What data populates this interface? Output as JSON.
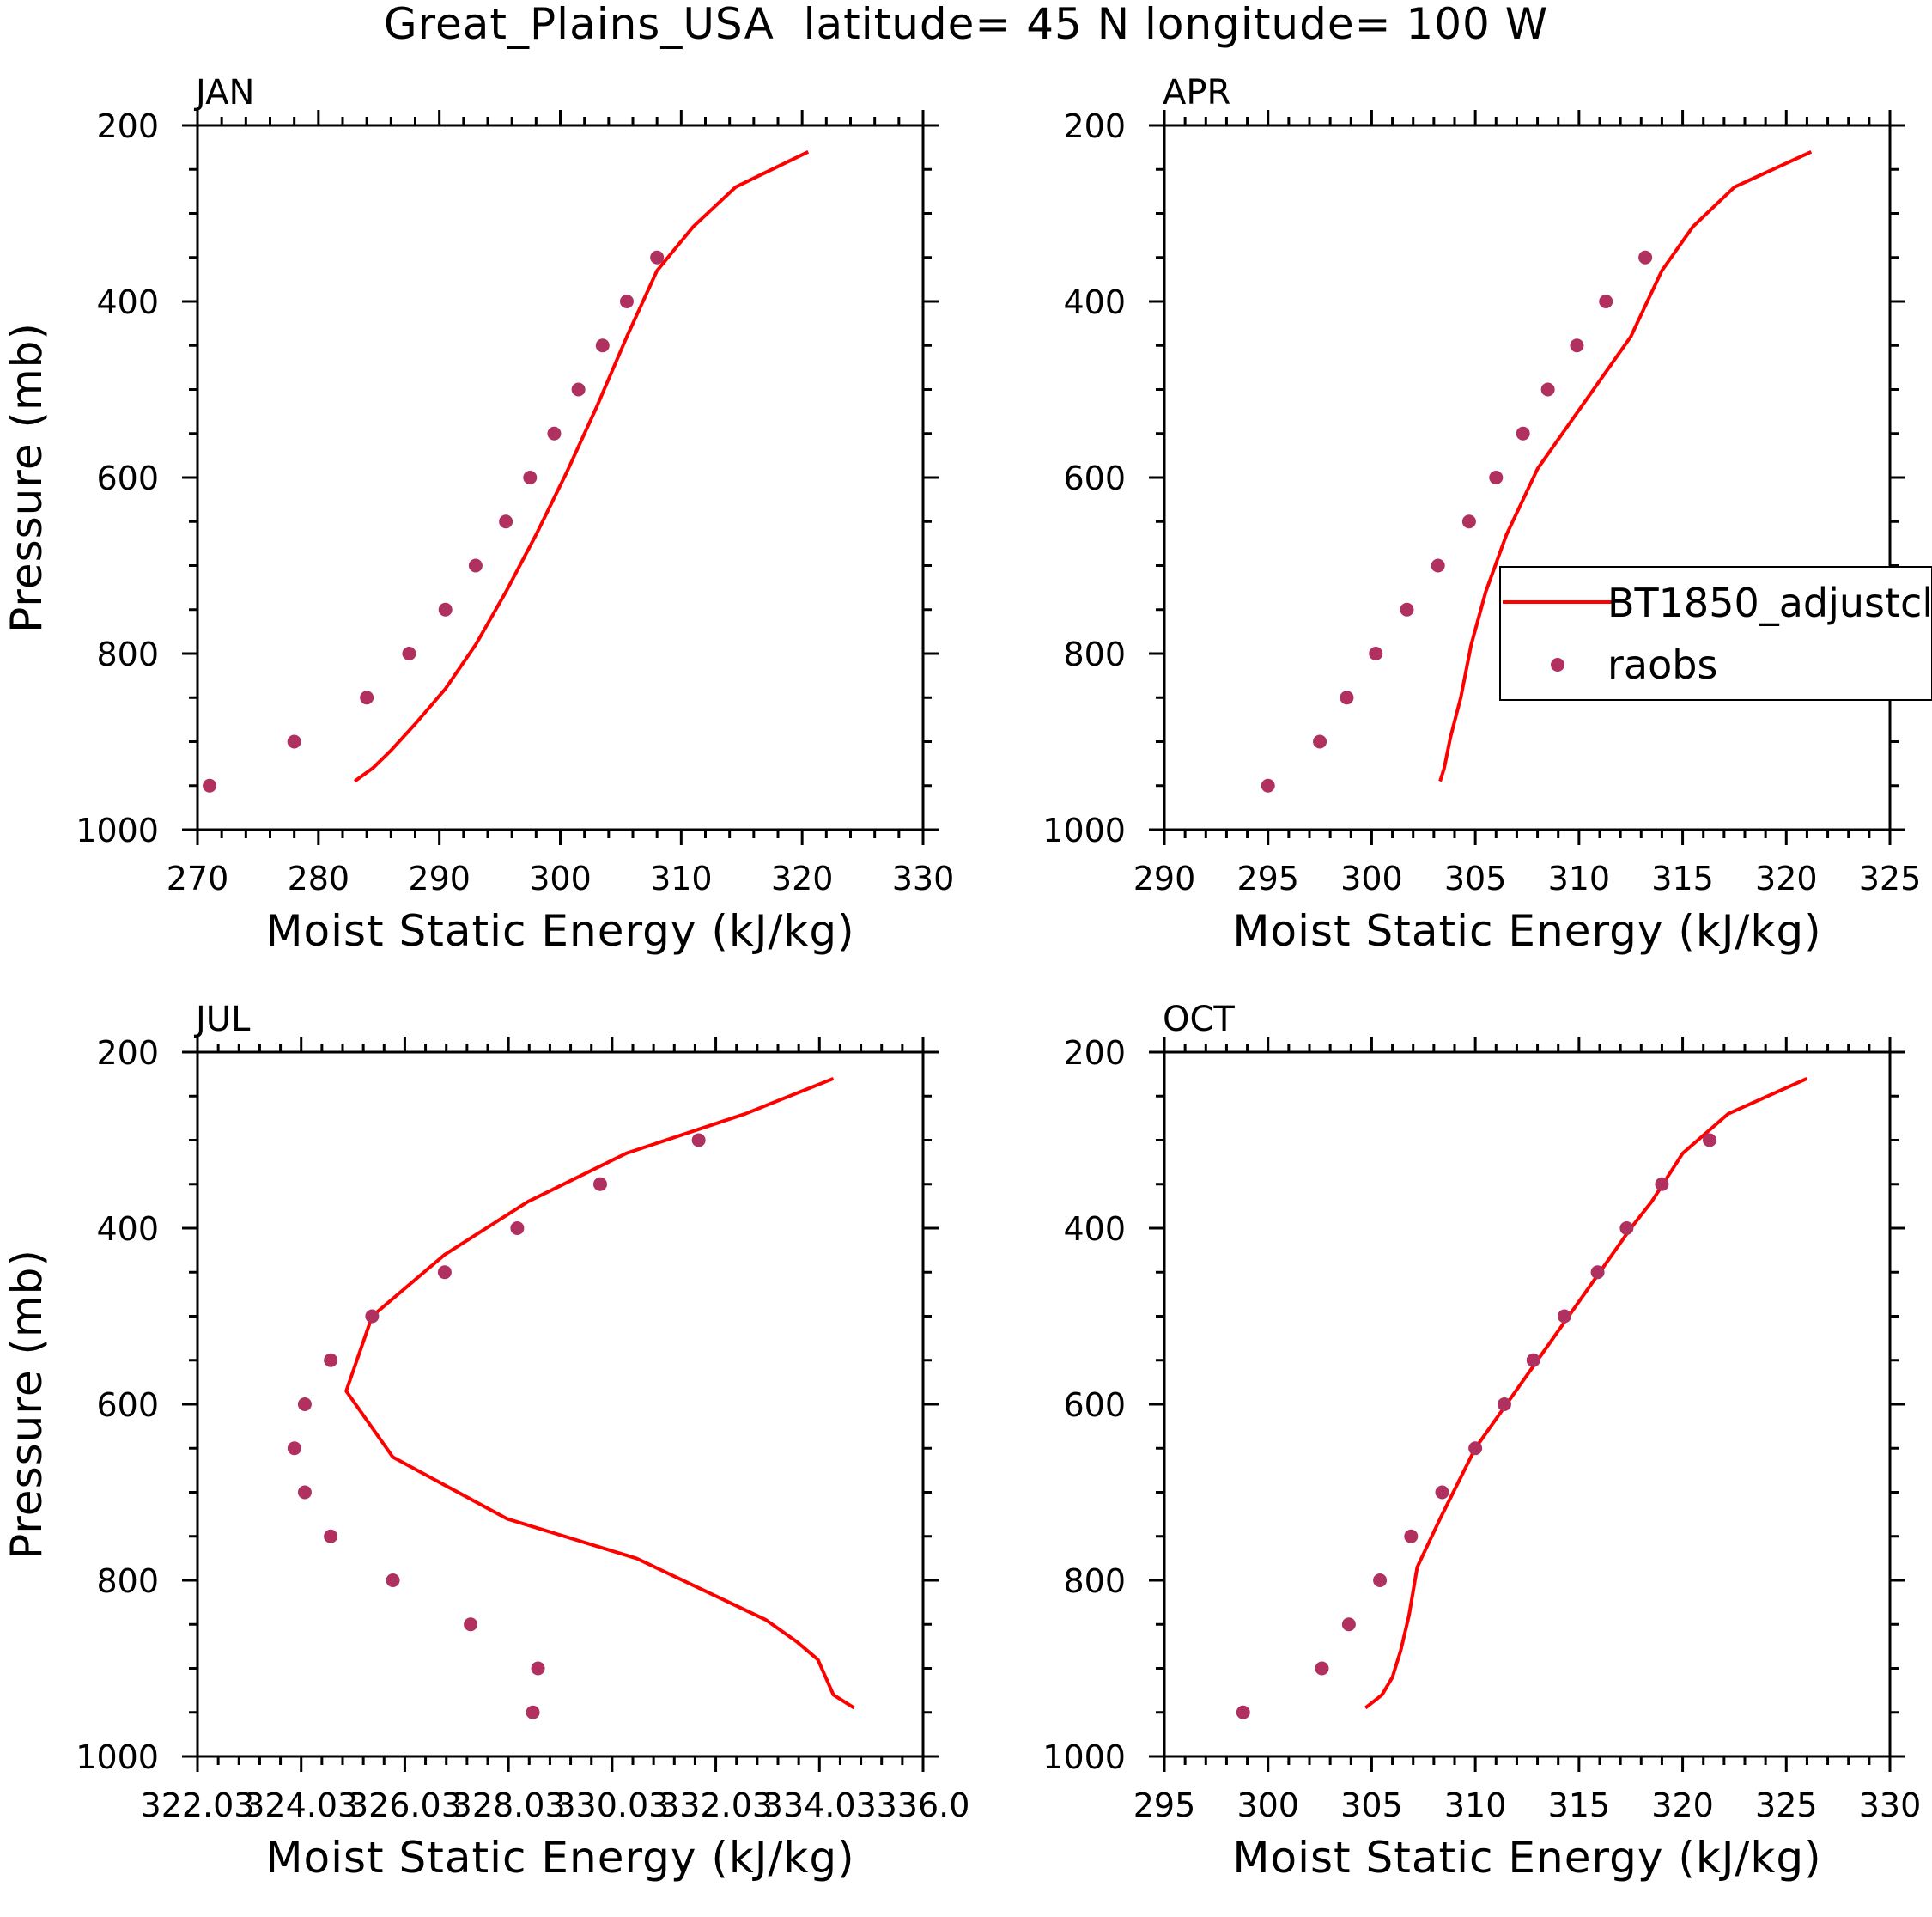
{
  "figure": {
    "title": "Great_Plains_USA  latitude= 45 N longitude= 100 W"
  },
  "legend": {
    "model_label": "BT1850_adjustcl",
    "obs_label": "raobs"
  },
  "colors": {
    "model_line": "#ff0000",
    "obs_marker": "#b03060",
    "axis": "#000000"
  },
  "chart_data": [
    {
      "type": "line",
      "label": "JAN",
      "xlabel": "Moist Static Energy (kJ/kg)",
      "ylabel": "Pressure (mb)",
      "xlim": [
        270,
        330
      ],
      "ylim": [
        1000,
        200
      ],
      "xticks": [
        270,
        280,
        290,
        300,
        310,
        320,
        330
      ],
      "xtick_labels": [
        "270",
        "280",
        "290",
        "300",
        "310",
        "320",
        "330"
      ],
      "yticks": [
        200,
        400,
        600,
        800,
        1000
      ],
      "ytick_labels": [
        "200",
        "400",
        "600",
        "800",
        "1000"
      ],
      "series": [
        {
          "name": "BT1850_adjustcl",
          "kind": "line",
          "x": [
            283.0,
            284.5,
            286.0,
            288.0,
            290.5,
            293.0,
            295.5,
            298.0,
            300.5,
            303.0,
            305.5,
            308.0,
            311.0,
            314.5,
            320.5
          ],
          "y": [
            945,
            930,
            910,
            880,
            840,
            790,
            730,
            665,
            595,
            520,
            440,
            365,
            315,
            270,
            230
          ]
        },
        {
          "name": "raobs",
          "kind": "scatter",
          "x": [
            271.0,
            278.0,
            284.0,
            287.5,
            290.5,
            293.0,
            295.5,
            297.5,
            299.5,
            301.5,
            303.5,
            305.5,
            308.0
          ],
          "y": [
            950,
            900,
            850,
            800,
            750,
            700,
            650,
            600,
            550,
            500,
            450,
            400,
            350
          ]
        }
      ]
    },
    {
      "type": "line",
      "label": "APR",
      "xlabel": "Moist Static Energy (kJ/kg)",
      "ylabel": "",
      "xlim": [
        290,
        325
      ],
      "ylim": [
        1000,
        200
      ],
      "xticks": [
        290,
        295,
        300,
        305,
        310,
        315,
        320,
        325
      ],
      "xtick_labels": [
        "290",
        "295",
        "300",
        "305",
        "310",
        "315",
        "320",
        "325"
      ],
      "yticks": [
        200,
        400,
        600,
        800,
        1000
      ],
      "ytick_labels": [
        "200",
        "400",
        "600",
        "800",
        "1000"
      ],
      "series": [
        {
          "name": "BT1850_adjustcl",
          "kind": "line",
          "x": [
            303.3,
            303.5,
            303.8,
            304.3,
            304.8,
            305.5,
            306.5,
            308.0,
            309.5,
            311.0,
            312.5,
            314.0,
            315.5,
            317.5,
            321.2
          ],
          "y": [
            945,
            930,
            895,
            850,
            790,
            730,
            665,
            590,
            540,
            490,
            440,
            365,
            315,
            270,
            230
          ]
        },
        {
          "name": "raobs",
          "kind": "scatter",
          "x": [
            295.0,
            297.5,
            298.8,
            300.2,
            301.7,
            303.2,
            304.7,
            306.0,
            307.3,
            308.5,
            309.9,
            311.3,
            313.2
          ],
          "y": [
            950,
            900,
            850,
            800,
            750,
            700,
            650,
            600,
            550,
            500,
            450,
            400,
            350
          ]
        }
      ]
    },
    {
      "type": "line",
      "label": "JUL",
      "xlabel": "Moist Static Energy (kJ/kg)",
      "ylabel": "Pressure (mb)",
      "xlim": [
        322.03,
        336.03
      ],
      "ylim": [
        1000,
        200
      ],
      "xticks": [
        322.03,
        324.03,
        326.03,
        328.03,
        330.03,
        332.03,
        334.03,
        336.03
      ],
      "xtick_labels": [
        "322.03",
        "324.03",
        "326.03",
        "328.03",
        "330.03",
        "332.03",
        "334.03",
        "336.0"
      ],
      "yticks": [
        200,
        400,
        600,
        800,
        1000
      ],
      "ytick_labels": [
        "200",
        "400",
        "600",
        "800",
        "1000"
      ],
      "series": [
        {
          "name": "BT1850_adjustcl",
          "kind": "line",
          "x": [
            334.7,
            334.3,
            334.0,
            333.6,
            333.0,
            330.5,
            328.0,
            325.8,
            324.9,
            325.4,
            326.8,
            328.4,
            330.3,
            332.6,
            334.3
          ],
          "y": [
            945,
            930,
            890,
            870,
            845,
            775,
            730,
            660,
            585,
            500,
            430,
            370,
            315,
            270,
            230
          ]
        },
        {
          "name": "raobs",
          "kind": "scatter",
          "x": [
            328.5,
            328.6,
            327.3,
            325.8,
            324.6,
            324.1,
            323.9,
            324.1,
            324.6,
            325.4,
            326.8,
            328.2,
            329.8,
            331.7
          ],
          "y": [
            950,
            900,
            850,
            800,
            750,
            700,
            650,
            600,
            550,
            500,
            450,
            400,
            350,
            300
          ]
        }
      ]
    },
    {
      "type": "line",
      "label": "OCT",
      "xlabel": "Moist Static Energy (kJ/kg)",
      "ylabel": "",
      "xlim": [
        295,
        330
      ],
      "ylim": [
        1000,
        200
      ],
      "xticks": [
        295,
        300,
        305,
        310,
        315,
        320,
        325,
        330
      ],
      "xtick_labels": [
        "295",
        "300",
        "305",
        "310",
        "315",
        "320",
        "325",
        "330"
      ],
      "yticks": [
        200,
        400,
        600,
        800,
        1000
      ],
      "ytick_labels": [
        "200",
        "400",
        "600",
        "800",
        "1000"
      ],
      "series": [
        {
          "name": "BT1850_adjustcl",
          "kind": "line",
          "x": [
            304.7,
            305.5,
            306.0,
            306.4,
            306.8,
            307.2,
            308.3,
            310.0,
            311.5,
            313.0,
            314.5,
            316.0,
            317.5,
            318.5,
            320.0,
            322.2,
            326.0
          ],
          "y": [
            945,
            930,
            910,
            880,
            840,
            785,
            730,
            650,
            600,
            550,
            500,
            450,
            400,
            370,
            315,
            270,
            230
          ]
        },
        {
          "name": "raobs",
          "kind": "scatter",
          "x": [
            298.8,
            302.6,
            303.9,
            305.4,
            306.9,
            308.4,
            310.0,
            311.4,
            312.8,
            314.3,
            315.9,
            317.3,
            319.0,
            321.3
          ],
          "y": [
            950,
            900,
            850,
            800,
            750,
            700,
            650,
            600,
            550,
            500,
            450,
            400,
            350,
            300
          ]
        }
      ]
    }
  ]
}
